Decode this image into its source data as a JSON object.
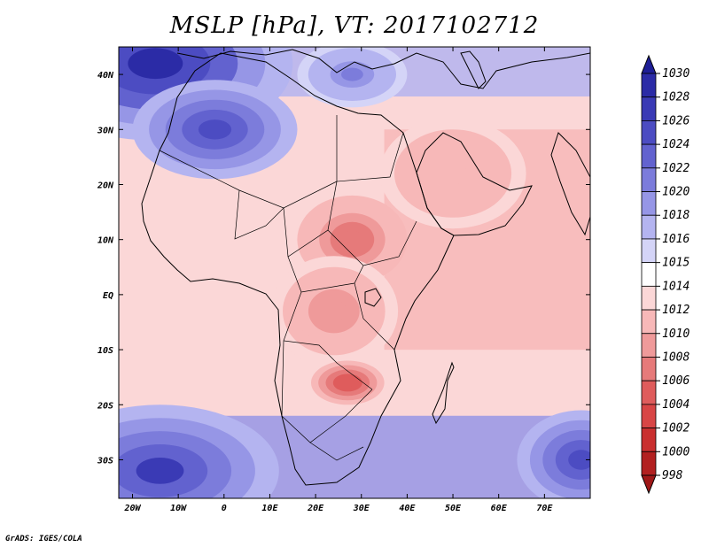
{
  "title": "MSLP [hPa], VT: 2017102712",
  "credit": "GrADS: IGES/COLA",
  "map": {
    "lon_range": [
      -23,
      80
    ],
    "lat_range": [
      -37,
      45
    ],
    "lat_ticks": [
      {
        "value": 40,
        "label": "40N"
      },
      {
        "value": 30,
        "label": "30N"
      },
      {
        "value": 20,
        "label": "20N"
      },
      {
        "value": 10,
        "label": "10N"
      },
      {
        "value": 0,
        "label": "EQ"
      },
      {
        "value": -10,
        "label": "10S"
      },
      {
        "value": -20,
        "label": "20S"
      },
      {
        "value": -30,
        "label": "30S"
      }
    ],
    "lon_ticks": [
      {
        "value": -20,
        "label": "20W"
      },
      {
        "value": -10,
        "label": "10W"
      },
      {
        "value": 0,
        "label": "0"
      },
      {
        "value": 10,
        "label": "10E"
      },
      {
        "value": 20,
        "label": "20E"
      },
      {
        "value": 30,
        "label": "30E"
      },
      {
        "value": 40,
        "label": "40E"
      },
      {
        "value": 50,
        "label": "50E"
      },
      {
        "value": 60,
        "label": "60E"
      },
      {
        "value": 70,
        "label": "70E"
      }
    ]
  },
  "colorbar": {
    "levels": [
      "1030",
      "1028",
      "1026",
      "1024",
      "1022",
      "1020",
      "1018",
      "1016",
      "1015",
      "1014",
      "1012",
      "1010",
      "1008",
      "1006",
      "1004",
      "1002",
      "1000",
      "998"
    ],
    "colors": [
      "#1e1e96",
      "#2b2ba6",
      "#3a3ab5",
      "#4c4cc2",
      "#6262cf",
      "#7c7cdb",
      "#9696e6",
      "#b4b4f0",
      "#d4d4f7",
      "#ffffff",
      "#fbd7d7",
      "#f7b8b8",
      "#ef9a9a",
      "#e67a7a",
      "#df5c5c",
      "#d84545",
      "#c92f2f",
      "#b22020",
      "#a01818"
    ]
  },
  "pressure_centers": [
    {
      "name": "azores-high",
      "lon": -15,
      "lat": 42,
      "value": 1028,
      "rx": 30,
      "ry": 14
    },
    {
      "name": "sahara-high",
      "lon": -2,
      "lat": 30,
      "value": 1024,
      "rx": 18,
      "ry": 9
    },
    {
      "name": "med-high",
      "lon": 28,
      "lat": 40,
      "value": 1020,
      "rx": 12,
      "ry": 6
    },
    {
      "name": "southatlantic-high",
      "lon": -14,
      "lat": -32,
      "value": 1026,
      "rx": 26,
      "ry": 12
    },
    {
      "name": "southindian-high",
      "lon": 78,
      "lat": -30,
      "value": 1024,
      "rx": 14,
      "ry": 9
    },
    {
      "name": "equatorial-low",
      "lon": 28,
      "lat": 10,
      "value": 1006,
      "rx": 12,
      "ry": 8
    },
    {
      "name": "central-africa-low",
      "lon": 24,
      "lat": -3,
      "value": 1008,
      "rx": 14,
      "ry": 10
    },
    {
      "name": "zambezi-low",
      "lon": 27,
      "lat": -16,
      "value": 1004,
      "rx": 8,
      "ry": 4
    },
    {
      "name": "arabia-low",
      "lon": 50,
      "lat": 22,
      "value": 1010,
      "rx": 16,
      "ry": 10
    }
  ]
}
